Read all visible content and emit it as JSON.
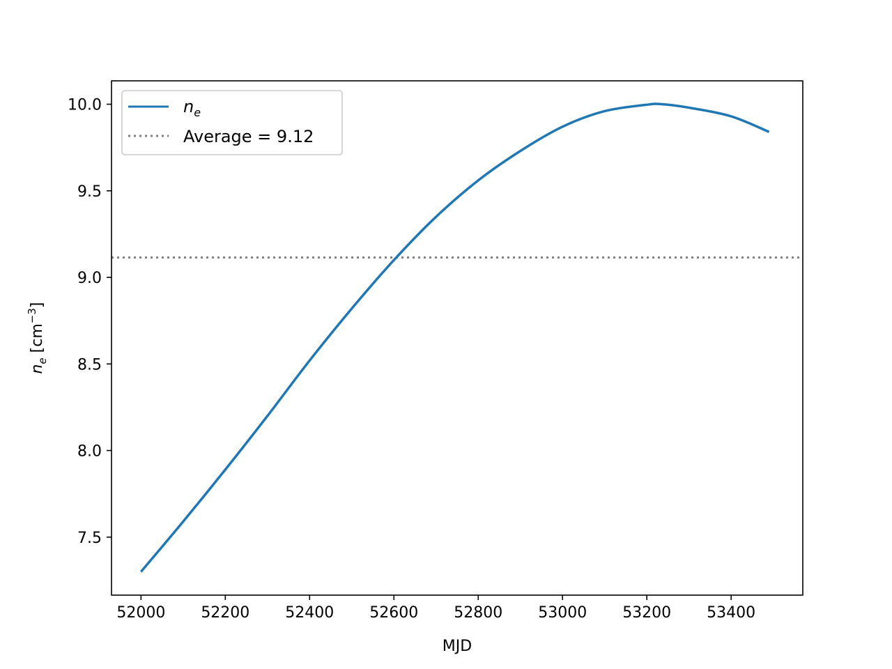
{
  "chart_data": {
    "type": "line",
    "xlabel": "MJD",
    "ylabel": {
      "symbol": "n",
      "subscript": "e",
      "unit_open": " [cm",
      "unit_exp": "−3",
      "unit_close": "]"
    },
    "xlim": [
      51930,
      53570
    ],
    "ylim": [
      7.165,
      10.135
    ],
    "xticks": [
      52000,
      52200,
      52400,
      52600,
      52800,
      53000,
      53200,
      53400
    ],
    "yticks": [
      7.5,
      8.0,
      8.5,
      9.0,
      9.5,
      10.0
    ],
    "ytick_labels": [
      "7.5",
      "8.0",
      "8.5",
      "9.0",
      "9.5",
      "10.0"
    ],
    "grid": false,
    "legend_position": "top-left",
    "series": [
      {
        "name": "n_e",
        "legend_symbol": "n",
        "legend_subscript": "e",
        "color": "#1f77b4",
        "style": "solid",
        "x": [
          52000,
          52100,
          52200,
          52300,
          52400,
          52500,
          52600,
          52700,
          52800,
          52900,
          53000,
          53100,
          53200,
          53235,
          53300,
          53400,
          53490
        ],
        "y": [
          7.3,
          7.59,
          7.89,
          8.2,
          8.52,
          8.82,
          9.1,
          9.35,
          9.56,
          9.73,
          9.87,
          9.96,
          9.997,
          10.0,
          9.98,
          9.93,
          9.84
        ]
      },
      {
        "name": "Average = 9.12",
        "color": "#808080",
        "style": "dotted",
        "hline": 9.115
      }
    ]
  }
}
